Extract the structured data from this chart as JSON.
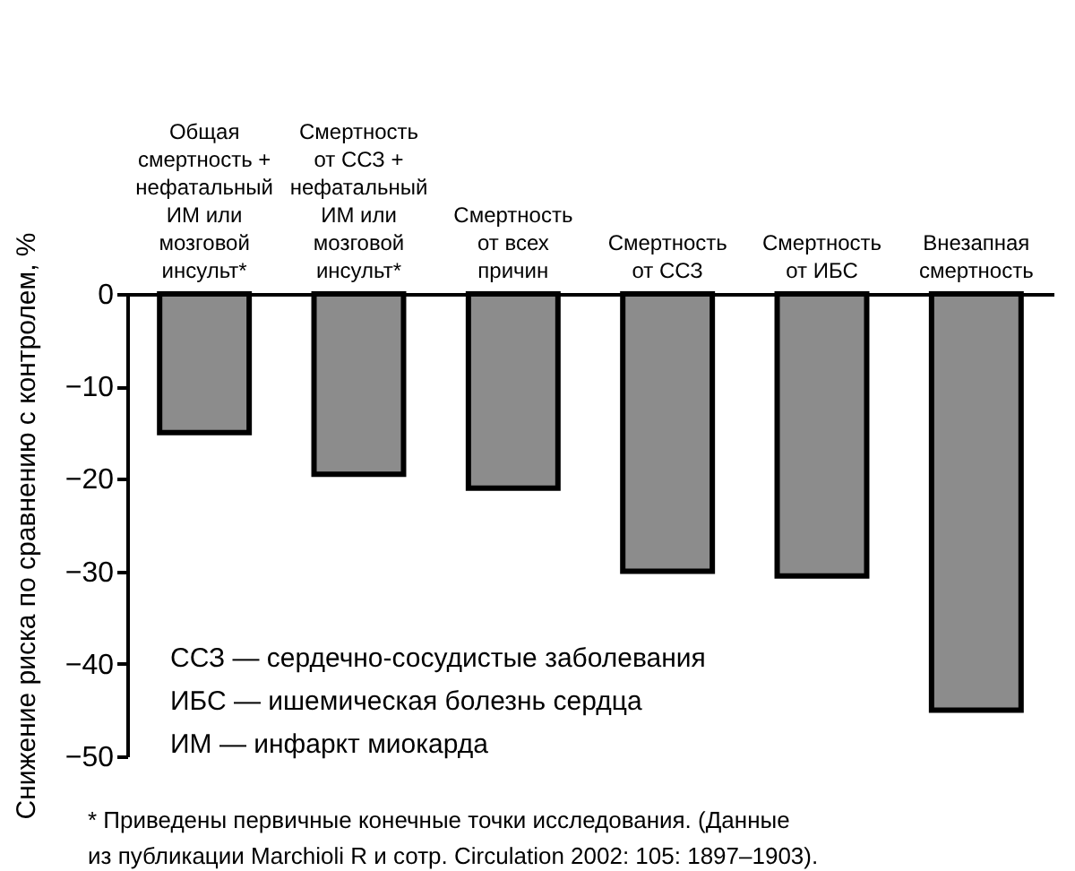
{
  "chart_data": {
    "type": "bar",
    "ylabel": "Снижение риска по сравнению с контролем, %",
    "categories": [
      "Общая\nсмертность +\nнефатальный\nИМ или\nмозговой\nинсульт*",
      "Смертность\nот ССЗ +\nнефатальный\nИМ или\nмозговой\nинсульт*",
      "Смертность\nот всех\nпричин",
      "Смертность\nот ССЗ",
      "Смертность\nот ИБС",
      "Внезапная\nсмертность"
    ],
    "values": [
      -15,
      -19.5,
      -21,
      -30,
      -30.5,
      -45
    ],
    "color": "#8c8c8c",
    "ylim": [
      -50,
      0
    ],
    "yticks": [
      0,
      -10,
      -20,
      -30,
      -40,
      -50
    ],
    "grid": false,
    "annotations": [
      "ССЗ — сердечно-сосудистые заболевания",
      "ИБС — ишемическая болезнь сердца",
      "ИМ — инфаркт миокарда",
      "* Приведены первичные конечные точки исследования. (Данные\n   из публикации Marchioli R и сотр. Circulation 2002: 105: 1897–1903)."
    ]
  }
}
